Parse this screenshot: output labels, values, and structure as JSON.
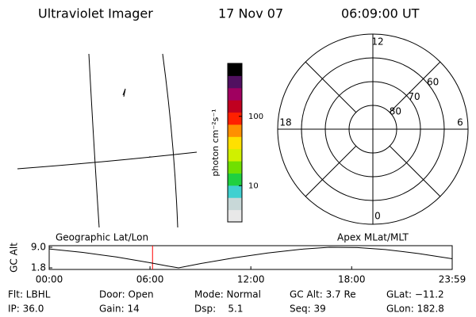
{
  "header": {
    "instrument": "Ultraviolet Imager",
    "date": "17 Nov 07",
    "time": "06:09:00 UT"
  },
  "panels": {
    "left": "Geographic Lat/Lon",
    "right": "Apex MLat/MLT"
  },
  "chart_data": [
    {
      "type": "colorbar",
      "label": "photon cm⁻²s⁻¹",
      "log_scale": true,
      "ylim": [
        3,
        580
      ],
      "yticks": [
        10,
        100
      ],
      "colors": [
        "#e8e8e8",
        "#c8d8d8",
        "#40d0d0",
        "#20d040",
        "#70e000",
        "#d0f000",
        "#ffe000",
        "#ff9000",
        "#ff2000",
        "#c00020",
        "#a00060",
        "#501060",
        "#000000"
      ]
    },
    {
      "type": "polar",
      "rlim": [
        90,
        50
      ],
      "rticks": [
        60,
        70,
        80
      ],
      "mltticks": [
        0,
        6,
        12,
        18
      ]
    },
    {
      "type": "line",
      "y_label": "GC Alt",
      "color": "#000000",
      "x": [
        0,
        120,
        240,
        360,
        420,
        462,
        540,
        660,
        780,
        900,
        1000,
        1100,
        1200,
        1320,
        1439
      ],
      "values": [
        8.4,
        7.2,
        5.6,
        3.6,
        2.5,
        1.8,
        3.3,
        5.3,
        7.0,
        8.3,
        9.0,
        8.9,
        8.2,
        6.8,
        5.0
      ],
      "xlim": [
        0,
        1439
      ],
      "xticks": [
        {
          "value": 0,
          "label": "00:00"
        },
        {
          "value": 360,
          "label": "06:00"
        },
        {
          "value": 720,
          "label": "12:00"
        },
        {
          "value": 1080,
          "label": "18:00"
        },
        {
          "value": 1439,
          "label": "23:59"
        }
      ],
      "ylim": [
        1.8,
        9.0
      ],
      "yticks": [
        {
          "value": 9.0,
          "label": "9.0"
        },
        {
          "value": 1.8,
          "label": "1.8"
        }
      ],
      "current_time": 369,
      "current_color": "#ff0000"
    }
  ],
  "info": [
    [
      "Flt: LBHL",
      "Door: Open",
      "Mode: Normal",
      "GC Alt: 3.7 Re",
      "GLat: −11.2"
    ],
    [
      "IP: 36.0",
      "Gain: 14",
      "Dsp:    5.1",
      "Seq: 39",
      "GLon: 182.8"
    ]
  ]
}
